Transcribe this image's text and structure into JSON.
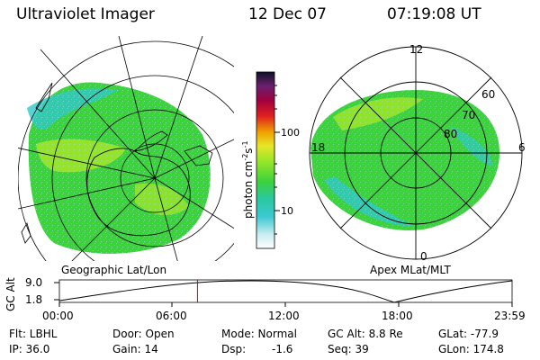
{
  "header": {
    "title": "Ultraviolet Imager",
    "date": "12 Dec 07",
    "time": "07:19:08 UT"
  },
  "left_map": {
    "label": "Geographic Lat/Lon"
  },
  "right_map": {
    "label": "Apex MLat/MLT",
    "mlt_labels": [
      "12",
      "18",
      "6",
      "0"
    ],
    "lat_labels": [
      "60",
      "70",
      "80"
    ]
  },
  "colorbar": {
    "axis_label": "photon cm",
    "axis_label_sup": "-2",
    "axis_label_mid": "s",
    "axis_label_sup2": "-1",
    "ticks": [
      "100",
      "10"
    ]
  },
  "altitude_plot": {
    "ylabel": "GC Alt",
    "ytick_high": "9.0",
    "ytick_low": "1.8",
    "xticks": [
      "00:00",
      "06:00",
      "12:00",
      "18:00",
      "23:59"
    ],
    "current_time_fraction": 0.305
  },
  "info": {
    "flt": "Flt: LBHL",
    "ip": "IP: 36.0",
    "door": "Door: Open",
    "gain": "Gain: 14",
    "mode": "Mode: Normal",
    "dsp_label": "Dsp:",
    "dsp_value": "-1.6",
    "gcalt": "GC Alt: 8.8 Re",
    "seq": "Seq: 39",
    "glat": "GLat: -77.9",
    "glon": "GLon: 174.8"
  },
  "colors": {
    "aurora_green": "#3cd23c",
    "aurora_yellowgreen": "#a6e628",
    "aurora_cyan": "#2ec8c8",
    "marker_red": "#d00000"
  }
}
